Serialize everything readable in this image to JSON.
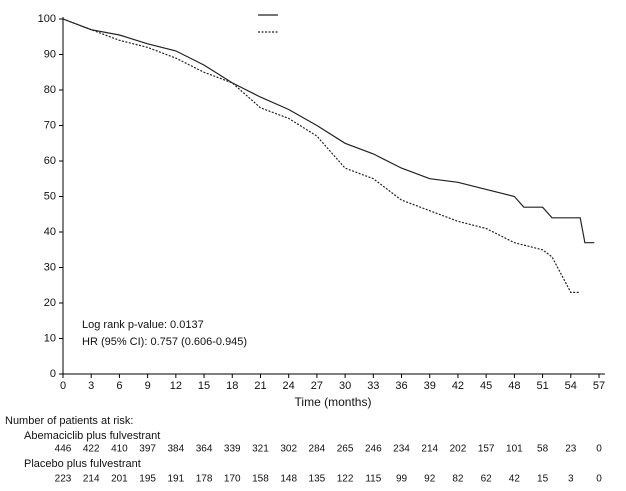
{
  "chart_data": {
    "type": "line",
    "step": true,
    "x_label": "Time (months)",
    "xlim": [
      0,
      57
    ],
    "xticks": [
      0,
      3,
      6,
      9,
      12,
      15,
      18,
      21,
      24,
      27,
      30,
      33,
      36,
      39,
      42,
      45,
      48,
      51,
      54,
      57
    ],
    "ylim": [
      0,
      100
    ],
    "yticks": [
      0,
      10,
      20,
      30,
      40,
      50,
      60,
      70,
      80,
      90,
      100
    ],
    "grid": false,
    "annotations": [
      "Log rank p-value: 0.0137",
      "HR (95% CI):  0.757 (0.606-0.945)"
    ],
    "series": [
      {
        "color": "#222222",
        "dash": false,
        "x": [
          0,
          3,
          6,
          9,
          12,
          15,
          18,
          21,
          24,
          27,
          30,
          33,
          36,
          39,
          42,
          45,
          48,
          49,
          51,
          52,
          55,
          55.5,
          56.5
        ],
        "values": [
          100,
          97,
          95.5,
          93,
          91,
          87,
          82,
          78,
          74.5,
          70,
          65,
          62,
          58,
          55,
          54,
          52,
          50,
          47,
          47,
          44,
          44,
          37,
          37
        ]
      },
      {
        "color": "#222222",
        "dash": true,
        "x": [
          0,
          3,
          6,
          9,
          12,
          15,
          18,
          21,
          24,
          27,
          29,
          30,
          33,
          36,
          39,
          42,
          45,
          48,
          51,
          52,
          53,
          54,
          55
        ],
        "values": [
          100,
          97,
          94,
          92,
          89,
          85,
          82,
          75,
          72,
          67,
          61,
          58,
          55,
          49,
          46,
          43,
          41,
          37,
          35,
          33,
          28,
          23,
          23
        ]
      }
    ]
  },
  "risk_table": {
    "title": "Number of patients at risk:",
    "rows": [
      {
        "label": "Abemaciclib plus fulvestrant",
        "values": [
          446,
          422,
          410,
          397,
          384,
          364,
          339,
          321,
          302,
          284,
          265,
          246,
          234,
          214,
          202,
          157,
          101,
          58,
          23,
          0
        ]
      },
      {
        "label": "Placebo plus fulvestrant",
        "values": [
          223,
          214,
          201,
          195,
          191,
          178,
          170,
          158,
          148,
          135,
          122,
          115,
          99,
          92,
          82,
          62,
          42,
          15,
          3,
          0
        ]
      }
    ]
  }
}
